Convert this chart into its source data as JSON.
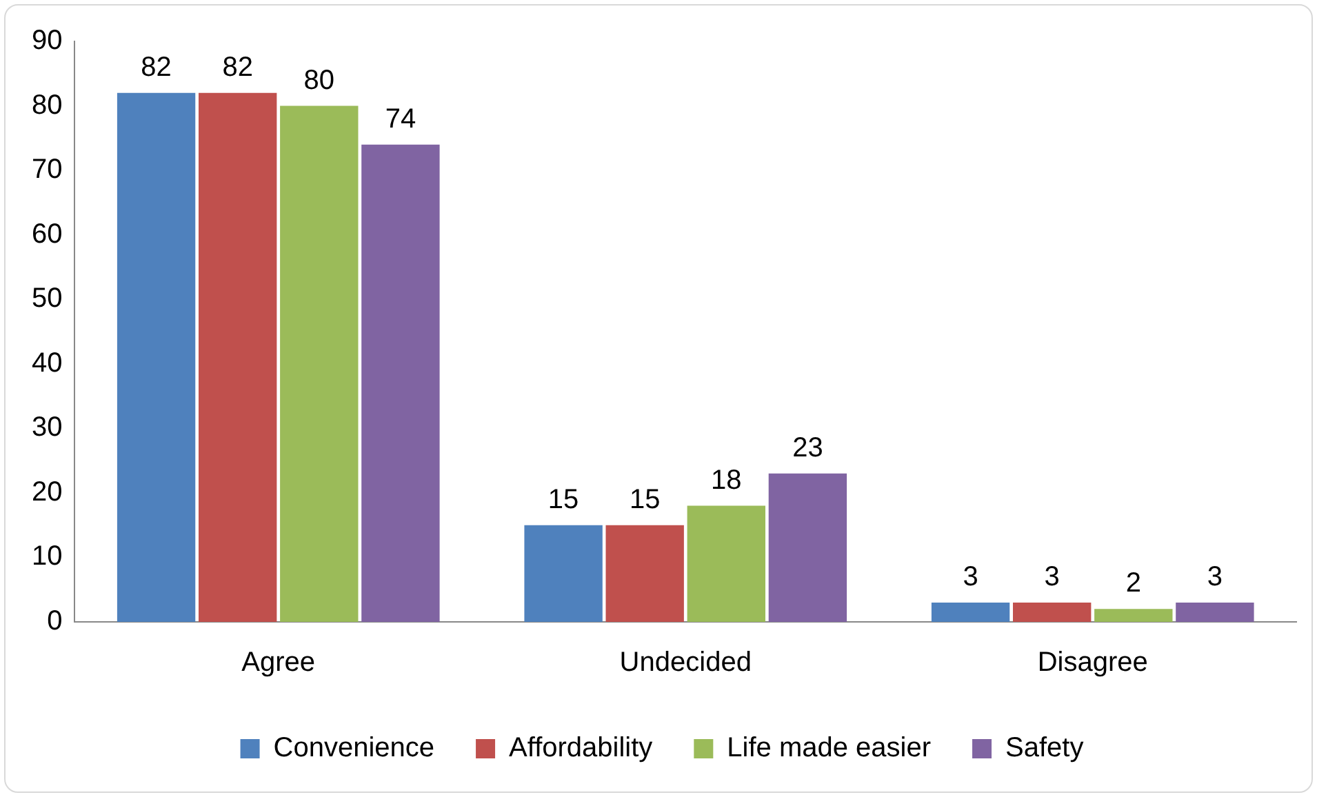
{
  "chart_data": {
    "type": "bar",
    "categories": [
      "Agree",
      "Undecided",
      "Disagree"
    ],
    "series": [
      {
        "name": "Convenience",
        "color": "#4f81bd",
        "values": [
          82,
          15,
          3
        ]
      },
      {
        "name": "Affordability",
        "color": "#c0504d",
        "values": [
          82,
          15,
          3
        ]
      },
      {
        "name": "Life made easier",
        "color": "#9bbb59",
        "values": [
          80,
          18,
          2
        ]
      },
      {
        "name": "Safety",
        "color": "#8064a2",
        "values": [
          74,
          23,
          3
        ]
      }
    ],
    "ylim": [
      0,
      90
    ],
    "yticks": [
      0,
      10,
      20,
      30,
      40,
      50,
      60,
      70,
      80,
      90
    ],
    "grid": false,
    "legend": "bottom",
    "data_labels": true
  }
}
